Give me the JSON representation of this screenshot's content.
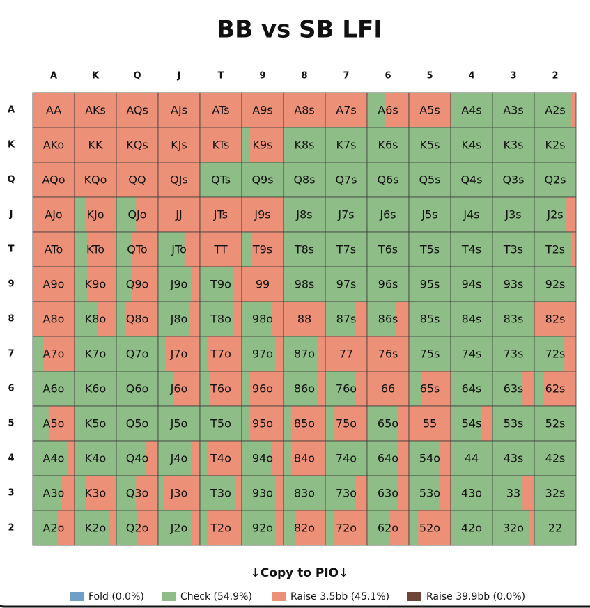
{
  "title": "BB vs SB LFI",
  "columns": [
    "A",
    "K",
    "Q",
    "J",
    "T",
    "9",
    "8",
    "7",
    "6",
    "5",
    "4",
    "3",
    "2"
  ],
  "colors": {
    "check": "#8fbd87",
    "raise": "#ec9177"
  },
  "rows": [
    {
      "header": "A",
      "cells": [
        {
          "label": "AA",
          "raise": 100
        },
        {
          "label": "AKs",
          "raise": 100
        },
        {
          "label": "AQs",
          "raise": 100
        },
        {
          "label": "AJs",
          "raise": 100
        },
        {
          "label": "ATs",
          "raise": 100
        },
        {
          "label": "A9s",
          "raise": 100
        },
        {
          "label": "A8s",
          "raise": 100
        },
        {
          "label": "A7s",
          "raise": 100
        },
        {
          "label": "A6s",
          "raise": 57
        },
        {
          "label": "A5s",
          "raise": 100
        },
        {
          "label": "A4s",
          "raise": 0
        },
        {
          "label": "A3s",
          "raise": 0
        },
        {
          "label": "A2s",
          "raise": 12
        }
      ]
    },
    {
      "header": "K",
      "cells": [
        {
          "label": "AKo",
          "raise": 100
        },
        {
          "label": "KK",
          "raise": 100
        },
        {
          "label": "KQs",
          "raise": 100
        },
        {
          "label": "KJs",
          "raise": 100
        },
        {
          "label": "KTs",
          "raise": 100
        },
        {
          "label": "K9s",
          "raise": 80
        },
        {
          "label": "K8s",
          "raise": 0
        },
        {
          "label": "K7s",
          "raise": 0
        },
        {
          "label": "K6s",
          "raise": 0
        },
        {
          "label": "K5s",
          "raise": 0
        },
        {
          "label": "K4s",
          "raise": 0
        },
        {
          "label": "K3s",
          "raise": 0
        },
        {
          "label": "K2s",
          "raise": 0
        }
      ]
    },
    {
      "header": "Q",
      "cells": [
        {
          "label": "AQo",
          "raise": 100
        },
        {
          "label": "KQo",
          "raise": 100
        },
        {
          "label": "QQ",
          "raise": 100
        },
        {
          "label": "QJs",
          "raise": 100
        },
        {
          "label": "QTs",
          "raise": 0
        },
        {
          "label": "Q9s",
          "raise": 0
        },
        {
          "label": "Q8s",
          "raise": 0
        },
        {
          "label": "Q7s",
          "raise": 0
        },
        {
          "label": "Q6s",
          "raise": 0
        },
        {
          "label": "Q5s",
          "raise": 0
        },
        {
          "label": "Q4s",
          "raise": 0
        },
        {
          "label": "Q3s",
          "raise": 0
        },
        {
          "label": "Q2s",
          "raise": 0
        }
      ]
    },
    {
      "header": "J",
      "cells": [
        {
          "label": "AJo",
          "raise": 100
        },
        {
          "label": "KJo",
          "raise": 75
        },
        {
          "label": "QJo",
          "raise": 53
        },
        {
          "label": "JJ",
          "raise": 100
        },
        {
          "label": "JTs",
          "raise": 100
        },
        {
          "label": "J9s",
          "raise": 100
        },
        {
          "label": "J8s",
          "raise": 0
        },
        {
          "label": "J7s",
          "raise": 0
        },
        {
          "label": "J6s",
          "raise": 0
        },
        {
          "label": "J5s",
          "raise": 0
        },
        {
          "label": "J4s",
          "raise": 0
        },
        {
          "label": "J3s",
          "raise": 0
        },
        {
          "label": "J2s",
          "raise": 23
        }
      ]
    },
    {
      "header": "T",
      "cells": [
        {
          "label": "ATo",
          "raise": 100
        },
        {
          "label": "KTo",
          "raise": 70
        },
        {
          "label": "QTo",
          "raise": 62
        },
        {
          "label": "JTo",
          "raise": 37
        },
        {
          "label": "TT",
          "raise": 100
        },
        {
          "label": "T9s",
          "raise": 78
        },
        {
          "label": "T8s",
          "raise": 0
        },
        {
          "label": "T7s",
          "raise": 0
        },
        {
          "label": "T6s",
          "raise": 0
        },
        {
          "label": "T5s",
          "raise": 0
        },
        {
          "label": "T4s",
          "raise": 0
        },
        {
          "label": "T3s",
          "raise": 0
        },
        {
          "label": "T2s",
          "raise": 12
        }
      ]
    },
    {
      "header": "9",
      "cells": [
        {
          "label": "A9o",
          "raise": 100
        },
        {
          "label": "K9o",
          "raise": 70
        },
        {
          "label": "Q9o",
          "raise": 62
        },
        {
          "label": "J9o",
          "raise": 20
        },
        {
          "label": "T9o",
          "raise": 20
        },
        {
          "label": "99",
          "raise": 100
        },
        {
          "label": "98s",
          "raise": 0
        },
        {
          "label": "97s",
          "raise": 0
        },
        {
          "label": "96s",
          "raise": 0
        },
        {
          "label": "95s",
          "raise": 0
        },
        {
          "label": "94s",
          "raise": 0
        },
        {
          "label": "93s",
          "raise": 0
        },
        {
          "label": "92s",
          "raise": 0
        }
      ]
    },
    {
      "header": "8",
      "cells": [
        {
          "label": "A8o",
          "raise": 100
        },
        {
          "label": "K8o",
          "raise": 45
        },
        {
          "label": "Q8o",
          "raise": 78
        },
        {
          "label": "J8o",
          "raise": 25
        },
        {
          "label": "T8o",
          "raise": 20
        },
        {
          "label": "98o",
          "raise": 28
        },
        {
          "label": "88",
          "raise": 100
        },
        {
          "label": "87s",
          "raise": 28
        },
        {
          "label": "86s",
          "raise": 33
        },
        {
          "label": "85s",
          "raise": 0
        },
        {
          "label": "84s",
          "raise": 0
        },
        {
          "label": "83s",
          "raise": 0
        },
        {
          "label": "82s",
          "raise": 100
        }
      ]
    },
    {
      "header": "7",
      "cells": [
        {
          "label": "A7o",
          "raise": 75
        },
        {
          "label": "K7o",
          "raise": 0
        },
        {
          "label": "Q7o",
          "raise": 0
        },
        {
          "label": "J7o",
          "raise": 83
        },
        {
          "label": "T7o",
          "raise": 83
        },
        {
          "label": "97o",
          "raise": 20
        },
        {
          "label": "87o",
          "raise": 20
        },
        {
          "label": "77",
          "raise": 100
        },
        {
          "label": "76s",
          "raise": 100
        },
        {
          "label": "75s",
          "raise": 0
        },
        {
          "label": "74s",
          "raise": 0
        },
        {
          "label": "73s",
          "raise": 0
        },
        {
          "label": "72s",
          "raise": 28
        }
      ]
    },
    {
      "header": "6",
      "cells": [
        {
          "label": "A6o",
          "raise": 0
        },
        {
          "label": "K6o",
          "raise": 0
        },
        {
          "label": "Q6o",
          "raise": 0
        },
        {
          "label": "J6o",
          "raise": 62
        },
        {
          "label": "T6o",
          "raise": 78
        },
        {
          "label": "96o",
          "raise": 83
        },
        {
          "label": "86o",
          "raise": 17
        },
        {
          "label": "76o",
          "raise": 28
        },
        {
          "label": "66",
          "raise": 100
        },
        {
          "label": "65s",
          "raise": 70
        },
        {
          "label": "64s",
          "raise": 0
        },
        {
          "label": "63s",
          "raise": 28
        },
        {
          "label": "62s",
          "raise": 78
        }
      ]
    },
    {
      "header": "5",
      "cells": [
        {
          "label": "A5o",
          "raise": 62
        },
        {
          "label": "K5o",
          "raise": 0
        },
        {
          "label": "Q5o",
          "raise": 0
        },
        {
          "label": "J5o",
          "raise": 0
        },
        {
          "label": "T5o",
          "raise": 0
        },
        {
          "label": "95o",
          "raise": 83
        },
        {
          "label": "85o",
          "raise": 82
        },
        {
          "label": "75o",
          "raise": 78
        },
        {
          "label": "65o",
          "raise": 28
        },
        {
          "label": "55",
          "raise": 100
        },
        {
          "label": "54s",
          "raise": 28
        },
        {
          "label": "53s",
          "raise": 0
        },
        {
          "label": "52s",
          "raise": 0
        }
      ]
    },
    {
      "header": "4",
      "cells": [
        {
          "label": "A4o",
          "raise": 15
        },
        {
          "label": "K4o",
          "raise": 0
        },
        {
          "label": "Q4o",
          "raise": 28
        },
        {
          "label": "J4o",
          "raise": 20
        },
        {
          "label": "T4o",
          "raise": 83
        },
        {
          "label": "94o",
          "raise": 28
        },
        {
          "label": "84o",
          "raise": 82
        },
        {
          "label": "74o",
          "raise": 0
        },
        {
          "label": "64o",
          "raise": 28
        },
        {
          "label": "54o",
          "raise": 28
        },
        {
          "label": "44",
          "raise": 0
        },
        {
          "label": "43s",
          "raise": 0
        },
        {
          "label": "42s",
          "raise": 0
        }
      ]
    },
    {
      "header": "3",
      "cells": [
        {
          "label": "A3o",
          "raise": 32
        },
        {
          "label": "K3o",
          "raise": 73
        },
        {
          "label": "Q3o",
          "raise": 53
        },
        {
          "label": "J3o",
          "raise": 87
        },
        {
          "label": "T3o",
          "raise": 15
        },
        {
          "label": "93o",
          "raise": 20
        },
        {
          "label": "83o",
          "raise": 0
        },
        {
          "label": "73o",
          "raise": 28
        },
        {
          "label": "63o",
          "raise": 28
        },
        {
          "label": "53o",
          "raise": 28
        },
        {
          "label": "43o",
          "raise": 0
        },
        {
          "label": "33",
          "raise": 28
        },
        {
          "label": "32s",
          "raise": 0
        }
      ]
    },
    {
      "header": "2",
      "cells": [
        {
          "label": "A2o",
          "raise": 40
        },
        {
          "label": "K2o",
          "raise": 17
        },
        {
          "label": "Q2o",
          "raise": 50
        },
        {
          "label": "J2o",
          "raise": 20
        },
        {
          "label": "T2o",
          "raise": 83
        },
        {
          "label": "92o",
          "raise": 20
        },
        {
          "label": "82o",
          "raise": 73
        },
        {
          "label": "72o",
          "raise": 78
        },
        {
          "label": "62o",
          "raise": 45
        },
        {
          "label": "52o",
          "raise": 78
        },
        {
          "label": "42o",
          "raise": 0
        },
        {
          "label": "32o",
          "raise": 12
        },
        {
          "label": "22",
          "raise": 0
        }
      ]
    }
  ],
  "copy_button": "↓Copy to PIO↓",
  "legend": [
    {
      "label": "Fold (0.0%)",
      "color": "#6f9fc6"
    },
    {
      "label": "Check (54.9%)",
      "color": "#8fbd87"
    },
    {
      "label": "Raise 3.5bb (45.1%)",
      "color": "#ec9177"
    },
    {
      "label": "Raise 39.9bb (0.0%)",
      "color": "#6e4536"
    }
  ]
}
